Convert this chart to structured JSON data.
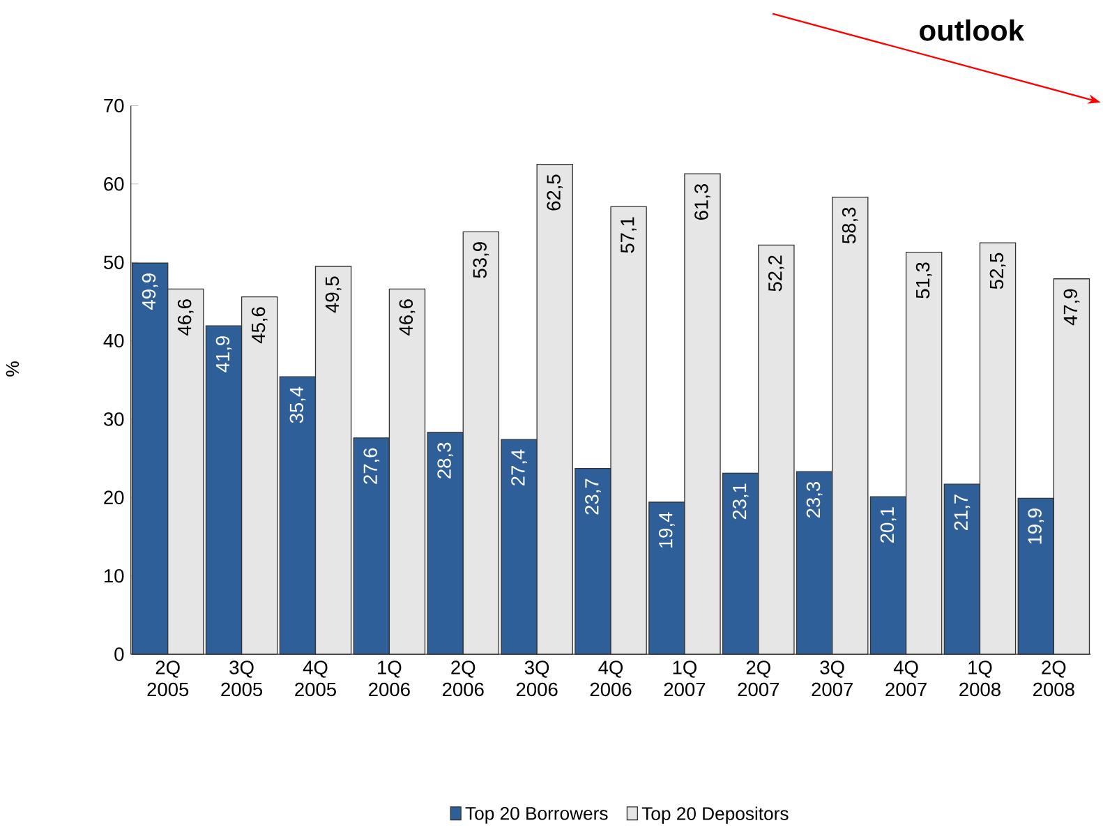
{
  "chart_data": {
    "type": "bar",
    "annotations": [
      "outlook"
    ],
    "ylabel": "%",
    "categories": [
      "2Q 2005",
      "3Q 2005",
      "4Q 2005",
      "1Q 2006",
      "2Q 2006",
      "3Q 2006",
      "4Q 2006",
      "1Q 2007",
      "2Q 2007",
      "3Q 2007",
      "4Q 2007",
      "1Q 2008",
      "2Q 2008"
    ],
    "series": [
      {
        "name": "Top 20 Borrowers",
        "color": "#2f5f98",
        "values": [
          49.9,
          41.9,
          35.4,
          27.6,
          28.3,
          27.4,
          23.7,
          19.4,
          23.1,
          23.3,
          20.1,
          21.7,
          19.9
        ],
        "value_labels": [
          "49,9",
          "41,9",
          "35,4",
          "27,6",
          "28,3",
          "27,4",
          "23,7",
          "19,4",
          "23,1",
          "23,3",
          "20,1",
          "21,7",
          "19,9"
        ]
      },
      {
        "name": "Top 20 Depositors",
        "color": "#e6e6e6",
        "values": [
          46.6,
          45.6,
          49.5,
          46.6,
          53.9,
          62.5,
          57.1,
          61.3,
          52.2,
          58.3,
          51.3,
          52.5,
          47.9
        ],
        "value_labels": [
          "46,6",
          "45,6",
          "49,5",
          "46,6",
          "53,9",
          "62,5",
          "57,1",
          "61,3",
          "52,2",
          "58,3",
          "51,3",
          "52,5",
          "47,9"
        ]
      }
    ],
    "ylim": [
      0,
      70
    ],
    "yticks": [
      0,
      10,
      20,
      30,
      40,
      50,
      60,
      70
    ],
    "legend": "bottom"
  }
}
